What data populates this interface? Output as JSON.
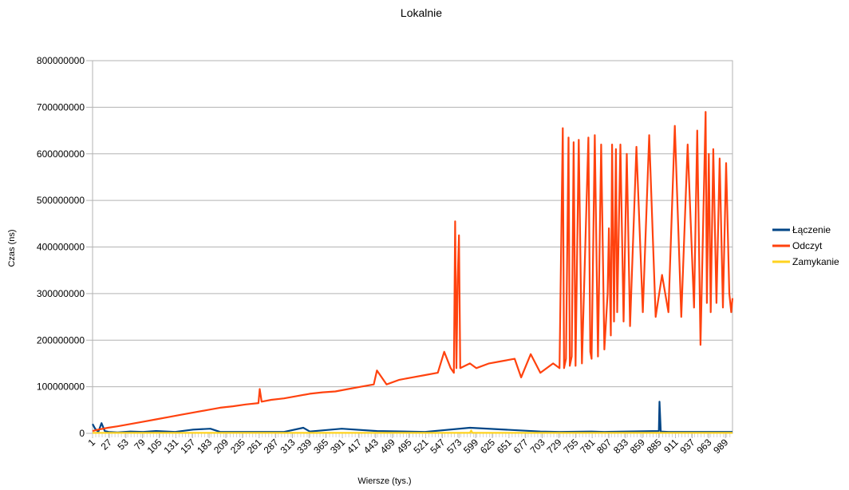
{
  "chart_data": {
    "type": "line",
    "title": "Lokalnie",
    "xlabel": "Wiersze (tys.)",
    "ylabel": "Czas (ns)",
    "ylim": [
      0,
      800000000
    ],
    "yticks": [
      0,
      100000000,
      200000000,
      300000000,
      400000000,
      500000000,
      600000000,
      700000000,
      800000000
    ],
    "ytick_labels": [
      "0",
      "100000000",
      "200000000",
      "300000000",
      "400000000",
      "500000000",
      "600000000",
      "700000000",
      "800000000"
    ],
    "x_tick_labels": [
      "1",
      "27",
      "53",
      "79",
      "105",
      "131",
      "157",
      "183",
      "209",
      "235",
      "261",
      "287",
      "313",
      "339",
      "365",
      "391",
      "417",
      "443",
      "469",
      "495",
      "521",
      "547",
      "573",
      "599",
      "625",
      "651",
      "677",
      "703",
      "729",
      "755",
      "781",
      "807",
      "833",
      "859",
      "885",
      "911",
      "937",
      "963",
      "989"
    ],
    "grid": true,
    "legend_position": "right",
    "x_range": [
      1,
      1000
    ],
    "series": [
      {
        "name": "Łączenie",
        "color": "#004586",
        "x": [
          1,
          5,
          10,
          15,
          20,
          26,
          40,
          60,
          80,
          100,
          130,
          158,
          185,
          200,
          300,
          330,
          340,
          390,
          445,
          520,
          590,
          700,
          730,
          780,
          800,
          885,
          886,
          888,
          900,
          1000
        ],
        "values": [
          20000000,
          10000000,
          3000000,
          22000000,
          5000000,
          3000000,
          2000000,
          4000000,
          3000000,
          5000000,
          3000000,
          8000000,
          10000000,
          3000000,
          3000000,
          12000000,
          4000000,
          10000000,
          5000000,
          3000000,
          12000000,
          4000000,
          3000000,
          4000000,
          3000000,
          5000000,
          68000000,
          4000000,
          3000000,
          3000000
        ]
      },
      {
        "name": "Odczyt",
        "color": "#ff420e",
        "x": [
          1,
          10,
          25,
          40,
          60,
          80,
          100,
          120,
          140,
          160,
          180,
          200,
          220,
          240,
          260,
          262,
          265,
          280,
          300,
          320,
          340,
          360,
          380,
          400,
          420,
          440,
          445,
          460,
          480,
          500,
          520,
          540,
          550,
          560,
          565,
          567,
          569,
          571,
          573,
          575,
          590,
          600,
          620,
          640,
          660,
          670,
          685,
          700,
          720,
          730,
          735,
          737,
          740,
          744,
          746,
          749,
          752,
          755,
          760,
          765,
          775,
          778,
          780,
          785,
          790,
          795,
          800,
          805,
          807,
          810,
          812,
          815,
          818,
          820,
          825,
          830,
          835,
          840,
          850,
          860,
          870,
          880,
          890,
          900,
          910,
          920,
          930,
          940,
          945,
          950,
          958,
          960,
          963,
          966,
          970,
          975,
          980,
          985,
          990,
          995,
          998,
          1000
        ],
        "values": [
          5000000,
          8000000,
          12000000,
          15000000,
          20000000,
          25000000,
          30000000,
          35000000,
          40000000,
          45000000,
          50000000,
          55000000,
          58000000,
          62000000,
          65000000,
          95000000,
          68000000,
          72000000,
          75000000,
          80000000,
          85000000,
          88000000,
          90000000,
          95000000,
          100000000,
          105000000,
          135000000,
          105000000,
          115000000,
          120000000,
          125000000,
          130000000,
          175000000,
          140000000,
          130000000,
          455000000,
          140000000,
          330000000,
          425000000,
          140000000,
          150000000,
          140000000,
          150000000,
          155000000,
          160000000,
          120000000,
          170000000,
          130000000,
          150000000,
          140000000,
          655000000,
          140000000,
          160000000,
          635000000,
          145000000,
          165000000,
          625000000,
          145000000,
          630000000,
          150000000,
          635000000,
          175000000,
          160000000,
          640000000,
          165000000,
          620000000,
          180000000,
          300000000,
          440000000,
          210000000,
          620000000,
          240000000,
          610000000,
          260000000,
          620000000,
          240000000,
          600000000,
          230000000,
          615000000,
          260000000,
          640000000,
          250000000,
          340000000,
          260000000,
          660000000,
          250000000,
          620000000,
          270000000,
          650000000,
          190000000,
          690000000,
          280000000,
          600000000,
          260000000,
          610000000,
          280000000,
          590000000,
          270000000,
          580000000,
          300000000,
          260000000,
          290000000
        ]
      },
      {
        "name": "Zamykanie",
        "color": "#ffd320",
        "x": [
          1,
          100,
          200,
          300,
          400,
          500,
          590,
          592,
          594,
          700,
          800,
          900,
          1000
        ],
        "values": [
          1000000,
          1000000,
          1000000,
          1000000,
          1000000,
          1000000,
          1000000,
          6000000,
          1000000,
          1000000,
          1000000,
          1000000,
          1000000
        ]
      }
    ]
  }
}
